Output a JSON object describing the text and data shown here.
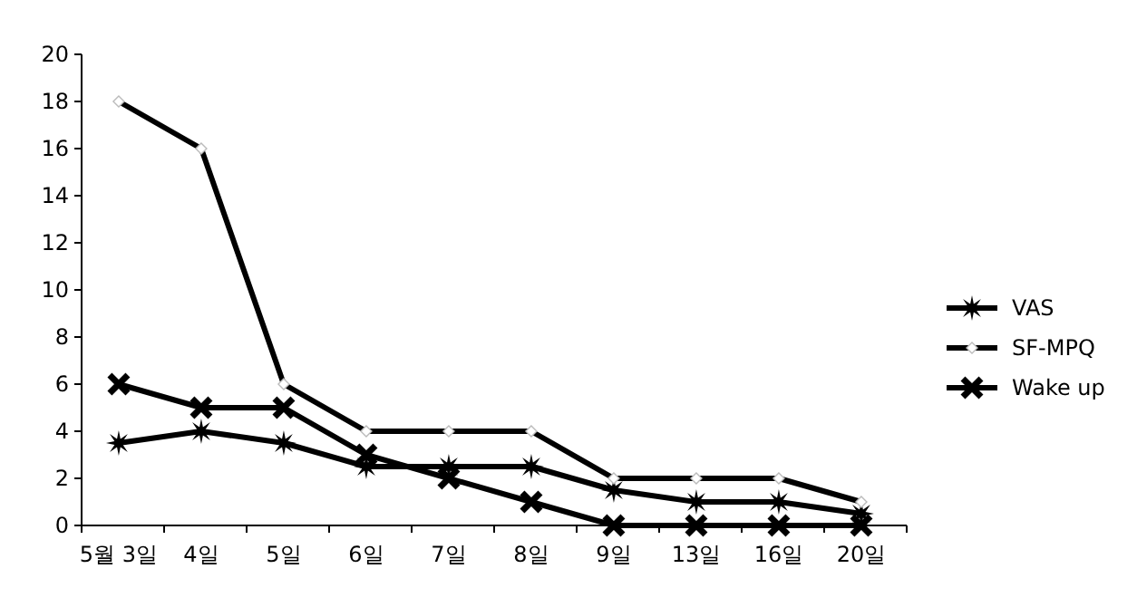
{
  "chart_data": {
    "type": "line",
    "categories": [
      "5월 3일",
      "4일",
      "5일",
      "6일",
      "7일",
      "8일",
      "9일",
      "13일",
      "16일",
      "20일"
    ],
    "series": [
      {
        "name": "VAS",
        "color": "#000000",
        "marker": "star",
        "values": [
          3.5,
          4,
          3.5,
          2.5,
          2.5,
          2.5,
          1.5,
          1,
          1,
          0.5
        ]
      },
      {
        "name": "SF-MPQ",
        "color": "#000000",
        "marker": "diamond",
        "values": [
          18,
          16,
          6,
          4,
          4,
          4,
          2,
          2,
          2,
          1
        ]
      },
      {
        "name": "Wake up",
        "color": "#000000",
        "marker": "cross",
        "values": [
          6,
          5,
          5,
          3,
          2,
          1,
          0,
          0,
          0,
          0
        ]
      }
    ],
    "ylim": [
      0,
      20
    ],
    "yticks": [
      0,
      2,
      4,
      6,
      8,
      10,
      12,
      14,
      16,
      18,
      20
    ],
    "grid": false,
    "legend": "right",
    "line_style": "solid"
  }
}
